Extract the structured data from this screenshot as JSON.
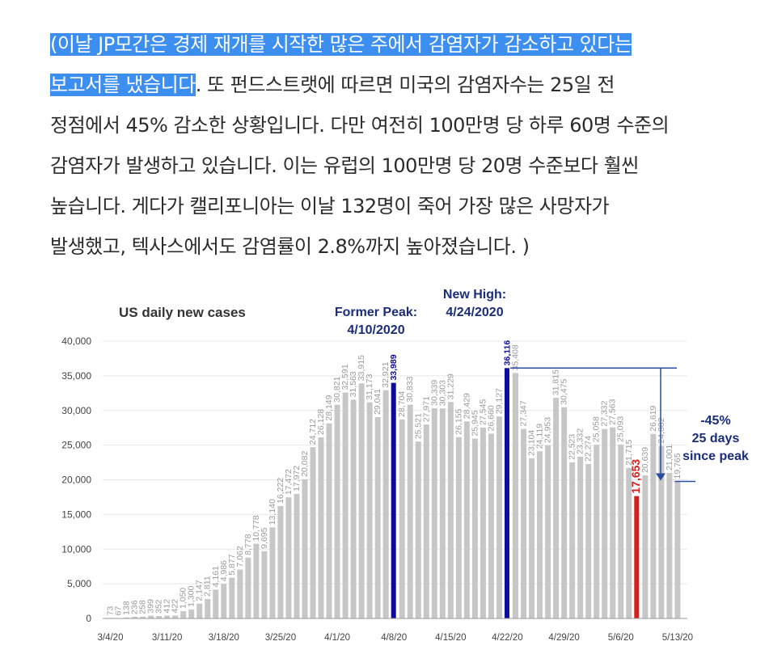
{
  "article": {
    "line1_highlight": "(이날 JP모간은 경제 재개를 시작한 많은 주에서 감염자가 감소하고 있다는",
    "line2_highlight": "보고서를 냈습니다",
    "line2_rest": ". 또 펀드스트랫에 따르면 미국의 감염자수는 25일 전",
    "line3": "정점에서 45% 감소한 상황입니다. 다만 여전히 100만명 당 하루 60명 수준의",
    "line4": "감염자가 발생하고 있습니다. 이는 유럽의 100만명 당 20명 수준보다 훨씬",
    "line5": "높습니다. 게다가 캘리포니아는 이날 132명이 죽어 가장 많은 사망자가",
    "line6": "발생했고, 텍사스에서도 감염률이 2.8%까지 높아졌습니다. )"
  },
  "colors": {
    "highlight_bg": "#3c8ff0",
    "bar_gray": "#c7c7c7",
    "bar_blue": "#0c0c9a",
    "bar_red": "#d62020",
    "annotation_navy": "#1a2d7a",
    "line_blue": "#2a4ea0"
  },
  "chart_data": {
    "type": "bar",
    "title": "US daily new cases",
    "xlabel": "",
    "ylabel": "",
    "ylim": [
      0,
      40000
    ],
    "yticks": [
      "0",
      "5,000",
      "10,000",
      "15,000",
      "20,000",
      "25,000",
      "30,000",
      "35,000",
      "40,000"
    ],
    "xtick_labels": [
      "3/4/20",
      "3/11/20",
      "3/18/20",
      "3/25/20",
      "4/1/20",
      "4/8/20",
      "4/15/20",
      "4/22/20",
      "4/29/20",
      "5/6/20",
      "5/13/20"
    ],
    "values": [
      73,
      67,
      138,
      236,
      258,
      399,
      352,
      412,
      422,
      1050,
      1300,
      2147,
      2811,
      4161,
      4986,
      5877,
      7062,
      8778,
      10778,
      9695,
      13140,
      16222,
      17472,
      17972,
      20082,
      24712,
      26128,
      28149,
      30821,
      32591,
      31563,
      33915,
      31173,
      29041,
      32921,
      33989,
      28704,
      30833,
      25521,
      27971,
      30339,
      30303,
      31229,
      26155,
      28429,
      25945,
      27545,
      26660,
      29127,
      36116,
      35408,
      27347,
      23104,
      24119,
      24953,
      31815,
      30475,
      22523,
      23332,
      22274,
      25058,
      27332,
      27563,
      25093,
      21715,
      17653,
      20639,
      26619,
      24882,
      21001,
      19765
    ],
    "value_labels": [
      "73",
      "67",
      "138",
      "236",
      "258",
      "399",
      "352",
      "412",
      "422",
      "1,050",
      "1,300",
      "2,147",
      "2,811",
      "4,161",
      "4,986",
      "5,877",
      "7,062",
      "8,778",
      "10,778",
      "9,695",
      "13,140",
      "16,222",
      "17,472",
      "17,972",
      "20,082",
      "24,712",
      "26,128",
      "28,149",
      "30,821",
      "32,591",
      "31,563",
      "33,915",
      "31,173",
      "29,041",
      "32,921",
      "33,989",
      "28,704",
      "30,833",
      "25,521",
      "27,971",
      "30,339",
      "30,303",
      "31,229",
      "26,155",
      "28,429",
      "25,945",
      "27,545",
      "26,660",
      "29,127",
      "36,116",
      "35,408",
      "27,347",
      "23,104",
      "24,119",
      "24,953",
      "31,815",
      "30,475",
      "22,523",
      "23,332",
      "22,274",
      "25,058",
      "27,332",
      "27,563",
      "25,093",
      "21,715",
      "17,653",
      "20,639",
      "26,619",
      "24,882",
      "21,001",
      "19,765"
    ],
    "highlighted_bars": [
      {
        "index": 35,
        "color": "blue",
        "label": "33,989"
      },
      {
        "index": 49,
        "color": "blue",
        "label": "36,116"
      },
      {
        "index": 65,
        "color": "red",
        "label": "17,653"
      }
    ],
    "annotations": {
      "former_peak_line1": "Former Peak:",
      "former_peak_line2": "4/10/2020",
      "new_high_line1": "New High:",
      "new_high_line2": "4/24/2020",
      "decline_line1": "-45%",
      "decline_line2": "25 days",
      "decline_line3": "since peak"
    }
  }
}
